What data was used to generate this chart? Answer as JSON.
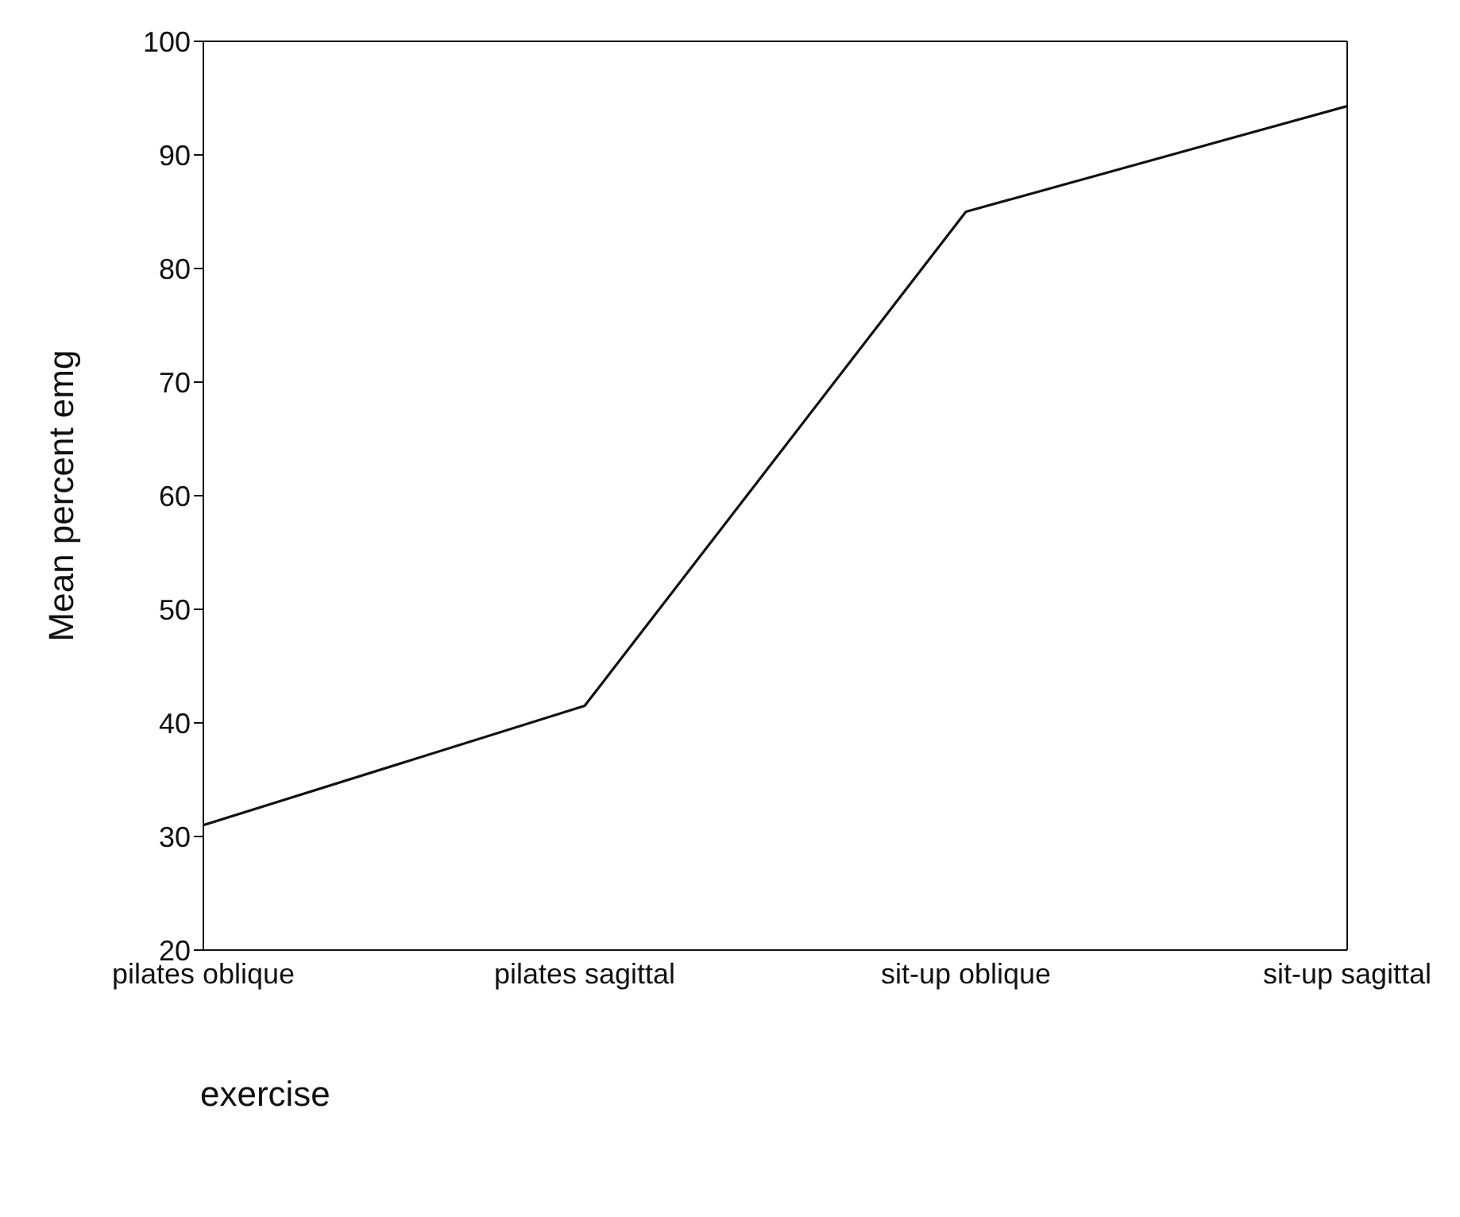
{
  "chart_data": {
    "type": "line",
    "xlabel": "exercise",
    "ylabel": "Mean percent emg",
    "categories": [
      "pilates oblique",
      "pilates sagittal",
      "sit-up oblique",
      "sit-up sagittal"
    ],
    "series": [
      {
        "color": "#111111",
        "values": [
          31,
          41.5,
          85,
          94.3
        ]
      }
    ],
    "ylim": [
      20,
      100
    ],
    "yticks": [
      20,
      30,
      40,
      50,
      60,
      70,
      80,
      90,
      100
    ],
    "grid": false,
    "legend": false,
    "marker": "none",
    "line_style": "solid"
  }
}
